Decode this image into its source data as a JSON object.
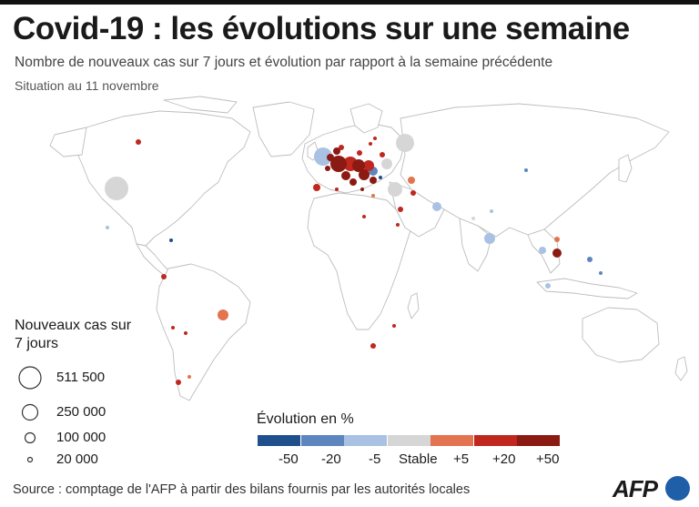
{
  "title": "Covid-19 : les évolutions sur une semaine",
  "subtitle": "Nombre de nouveaux cas sur 7 jours et évolution par rapport à la semaine précédente",
  "date": "Situation au 11 novembre",
  "size_legend": {
    "title": "Nouveaux cas sur 7 jours",
    "items": [
      {
        "label": "511 500",
        "value": 511500
      },
      {
        "label": "250 000",
        "value": 250000
      },
      {
        "label": "100 000",
        "value": 100000
      },
      {
        "label": "20 000",
        "value": 20000
      }
    ]
  },
  "color_legend": {
    "title": "Évolution en %",
    "colors": [
      "#1f4f8c",
      "#5d86be",
      "#a9c2e4",
      "#d6d6d6",
      "#e3744f",
      "#c0271f",
      "#8b1a13"
    ],
    "labels": [
      "-50",
      "-20",
      "-5",
      "Stable",
      "+5",
      "+20",
      "+50"
    ]
  },
  "source": "Source : comptage de l'AFP à partir des bilans fournis par les autorités locales",
  "logo": "AFP"
}
